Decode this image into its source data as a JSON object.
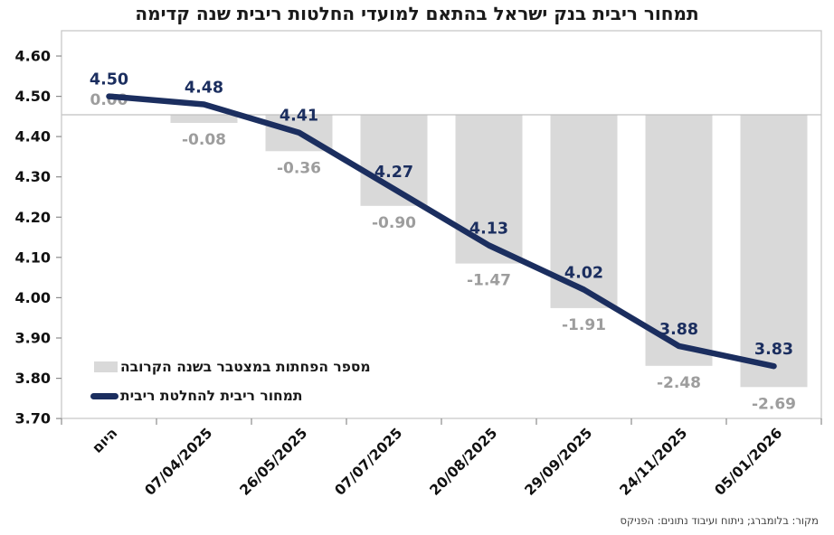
{
  "source": "מקור: בלומברג; ניתוח ועיבוד נתונים: הפניקס",
  "colors": {
    "line": "#1b2e5f",
    "bar": "#d9d9d9",
    "bar_label": "#9d9d9d",
    "axis_text": "#111111",
    "border": "#c8c8c8",
    "baseline": "#c0c0c0",
    "tick": "#8c8c8c"
  },
  "chart_data": {
    "type": "combo",
    "title": "תמחור ריבית בנק ישראל בהתאם למועדי החלטות ריבית שנה קדימה",
    "categories": [
      "היום",
      "07/04/2025",
      "26/05/2025",
      "07/07/2025",
      "20/08/2025",
      "29/09/2025",
      "24/11/2025",
      "05/01/2026"
    ],
    "series": [
      {
        "name": "מספר הפחתות במצטבר בשנה הקרובה",
        "type": "bar",
        "axis": "secondary",
        "values": [
          0.0,
          -0.08,
          -0.36,
          -0.9,
          -1.47,
          -1.91,
          -2.48,
          -2.69
        ]
      },
      {
        "name": "תמחור ריבית להחלטת ריבית",
        "type": "line",
        "axis": "primary",
        "values": [
          4.5,
          4.48,
          4.41,
          4.27,
          4.13,
          4.02,
          3.88,
          3.83
        ]
      }
    ],
    "xlabel": "",
    "ylabel": "",
    "primary_ylim": [
      3.7,
      4.6
    ],
    "primary_tick_step": 0.1,
    "secondary_zero_at_primary": 4.455,
    "grid": false,
    "legend_position": "inside-bottom-left",
    "data_labels": true
  }
}
